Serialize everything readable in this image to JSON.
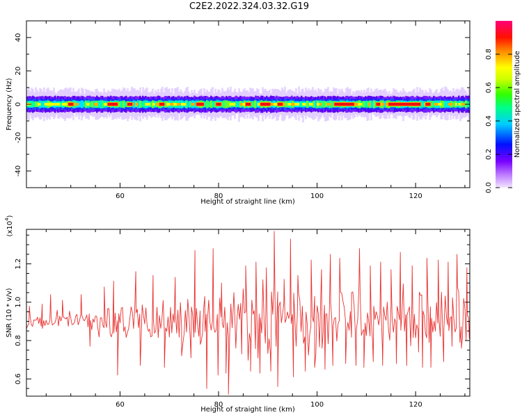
{
  "title": "C2E2.2022.324.03.32.G19",
  "colors": {
    "axis": "#000000",
    "snr_line": "#e8302e",
    "signal_core": "#e8302e",
    "background": "#ffffff"
  },
  "chart_data": [
    {
      "type": "heatmap",
      "xlabel": "Height of straight line (km)",
      "ylabel": "Frequency (Hz)",
      "xlim": [
        41,
        131
      ],
      "ylim": [
        -50,
        50
      ],
      "xticks": [
        60,
        80,
        100,
        120
      ],
      "yticks": [
        -40,
        -20,
        0,
        20,
        40
      ],
      "signal_center_hz": 0,
      "signal_halfwidth_hz": 4,
      "colorbar": {
        "label": "Normalized spectral amplitude",
        "range": [
          0,
          1
        ],
        "ticks": [
          "0.0",
          "0.2",
          "0.4",
          "0.6",
          "0.8"
        ],
        "tick_values": [
          0,
          0.2,
          0.4,
          0.6,
          0.8
        ],
        "colormap": [
          "#f2e6ff",
          "#7700ff",
          "#0011ff",
          "#00ccff",
          "#00ff66",
          "#66ff00",
          "#ffff00",
          "#ff8800",
          "#ff0000",
          "#ff0077"
        ]
      },
      "peak_segments_km": [
        [
          49.5,
          50.5
        ],
        [
          57.5,
          59.5
        ],
        [
          61.5,
          62.5
        ],
        [
          68,
          69
        ],
        [
          75.5,
          77
        ],
        [
          79.5,
          80.5
        ],
        [
          85.5,
          86.5
        ],
        [
          88.5,
          90.5
        ],
        [
          92,
          93
        ],
        [
          103.5,
          107.5
        ],
        [
          112,
          112.8
        ],
        [
          114.5,
          121
        ],
        [
          122,
          123
        ]
      ]
    },
    {
      "type": "line",
      "xlabel": "Height of straight line (km)",
      "ylabel": "SNR (10 * v/v)",
      "scale_label": "(x10",
      "scale_exponent": "4",
      "scale_suffix": ")",
      "xlim": [
        41,
        131
      ],
      "ylim": [
        0.51,
        1.38
      ],
      "xticks": [
        60,
        80,
        100,
        120
      ],
      "yticks": [
        0.6,
        0.8,
        1.0,
        1.2
      ],
      "ytick_labels": [
        "0.6",
        "0.8",
        "1.0",
        "1.2"
      ],
      "series": [
        {
          "x_start": 41,
          "x_end": 131,
          "step": 0.25,
          "anchors": [
            [
              41,
              0.89
            ],
            [
              43,
              0.92
            ],
            [
              45,
              0.88
            ],
            [
              47,
              0.91
            ],
            [
              50,
              0.9
            ],
            [
              54,
              0.91
            ],
            [
              57,
              0.88
            ],
            [
              60,
              0.9
            ],
            [
              64,
              0.89
            ],
            [
              68,
              0.91
            ],
            [
              72,
              0.9
            ],
            [
              76,
              0.88
            ],
            [
              80,
              0.91
            ],
            [
              84,
              0.89
            ],
            [
              88,
              0.92
            ],
            [
              92,
              0.9
            ],
            [
              96,
              0.91
            ],
            [
              100,
              0.89
            ],
            [
              104,
              0.9
            ],
            [
              108,
              0.92
            ],
            [
              112,
              0.89
            ],
            [
              116,
              0.91
            ],
            [
              120,
              0.9
            ],
            [
              124,
              0.89
            ],
            [
              128,
              0.91
            ],
            [
              131,
              0.9
            ]
          ],
          "noise_amplitude": [
            [
              41,
              0.05
            ],
            [
              52,
              0.06
            ],
            [
              56,
              0.1
            ],
            [
              62,
              0.15
            ],
            [
              70,
              0.16
            ],
            [
              75,
              0.18
            ],
            [
              80,
              0.22
            ],
            [
              90,
              0.24
            ],
            [
              100,
              0.22
            ],
            [
              110,
              0.2
            ],
            [
              120,
              0.19
            ],
            [
              131,
              0.17
            ]
          ],
          "extremes": [
            [
              41.6,
              0.98
            ],
            [
              44.2,
              0.99
            ],
            [
              45.9,
              1.04
            ],
            [
              48.3,
              1.01
            ],
            [
              52.1,
              1.04
            ],
            [
              53.9,
              0.77
            ],
            [
              56.8,
              1.08
            ],
            [
              58.7,
              1.11
            ],
            [
              59.5,
              0.62
            ],
            [
              63.2,
              1.16
            ],
            [
              64.1,
              0.67
            ],
            [
              66.7,
              1.14
            ],
            [
              69.0,
              0.66
            ],
            [
              71.2,
              1.13
            ],
            [
              72.5,
              0.72
            ],
            [
              74.4,
              0.71
            ],
            [
              75.2,
              1.27
            ],
            [
              76.3,
              0.78
            ],
            [
              77.2,
              1.03
            ],
            [
              77.6,
              0.55
            ],
            [
              78.9,
              1.28
            ],
            [
              79.9,
              0.62
            ],
            [
              80.6,
              1.1
            ],
            [
              81.5,
              0.63
            ],
            [
              82.0,
              0.52
            ],
            [
              83.1,
              1.05
            ],
            [
              84.7,
              0.73
            ],
            [
              85.5,
              1.19
            ],
            [
              86.5,
              0.64
            ],
            [
              87.6,
              1.21
            ],
            [
              88.4,
              0.63
            ],
            [
              89.7,
              1.18
            ],
            [
              90.6,
              0.64
            ],
            [
              91.3,
              1.37
            ],
            [
              91.7,
              0.77
            ],
            [
              92.0,
              0.56
            ],
            [
              93.3,
              1.12
            ],
            [
              94.6,
              1.33
            ],
            [
              95.2,
              0.61
            ],
            [
              96.1,
              1.14
            ],
            [
              97.6,
              0.64
            ],
            [
              98.8,
              1.22
            ],
            [
              99.5,
              0.66
            ],
            [
              100.9,
              1.17
            ],
            [
              101.6,
              0.65
            ],
            [
              102.7,
              1.25
            ],
            [
              103.2,
              0.67
            ],
            [
              104.6,
              1.23
            ],
            [
              105.8,
              0.68
            ],
            [
              107.0,
              1.05
            ],
            [
              107.9,
              0.67
            ],
            [
              108.6,
              1.28
            ],
            [
              109.5,
              0.66
            ],
            [
              110.8,
              1.19
            ],
            [
              111.4,
              0.69
            ],
            [
              112.9,
              1.21
            ],
            [
              113.3,
              0.67
            ],
            [
              115.0,
              1.17
            ],
            [
              116.1,
              0.68
            ],
            [
              116.9,
              1.26
            ],
            [
              118.2,
              0.67
            ],
            [
              119.3,
              1.19
            ],
            [
              120.6,
              0.74
            ],
            [
              121.4,
              0.66
            ],
            [
              122.3,
              1.23
            ],
            [
              123.1,
              0.66
            ],
            [
              124.6,
              1.22
            ],
            [
              125.7,
              0.69
            ],
            [
              126.6,
              1.21
            ],
            [
              127.4,
              0.77
            ],
            [
              128.4,
              1.25
            ],
            [
              129.3,
              0.76
            ],
            [
              130.4,
              1.18
            ],
            [
              130.9,
              0.81
            ]
          ]
        }
      ]
    }
  ]
}
